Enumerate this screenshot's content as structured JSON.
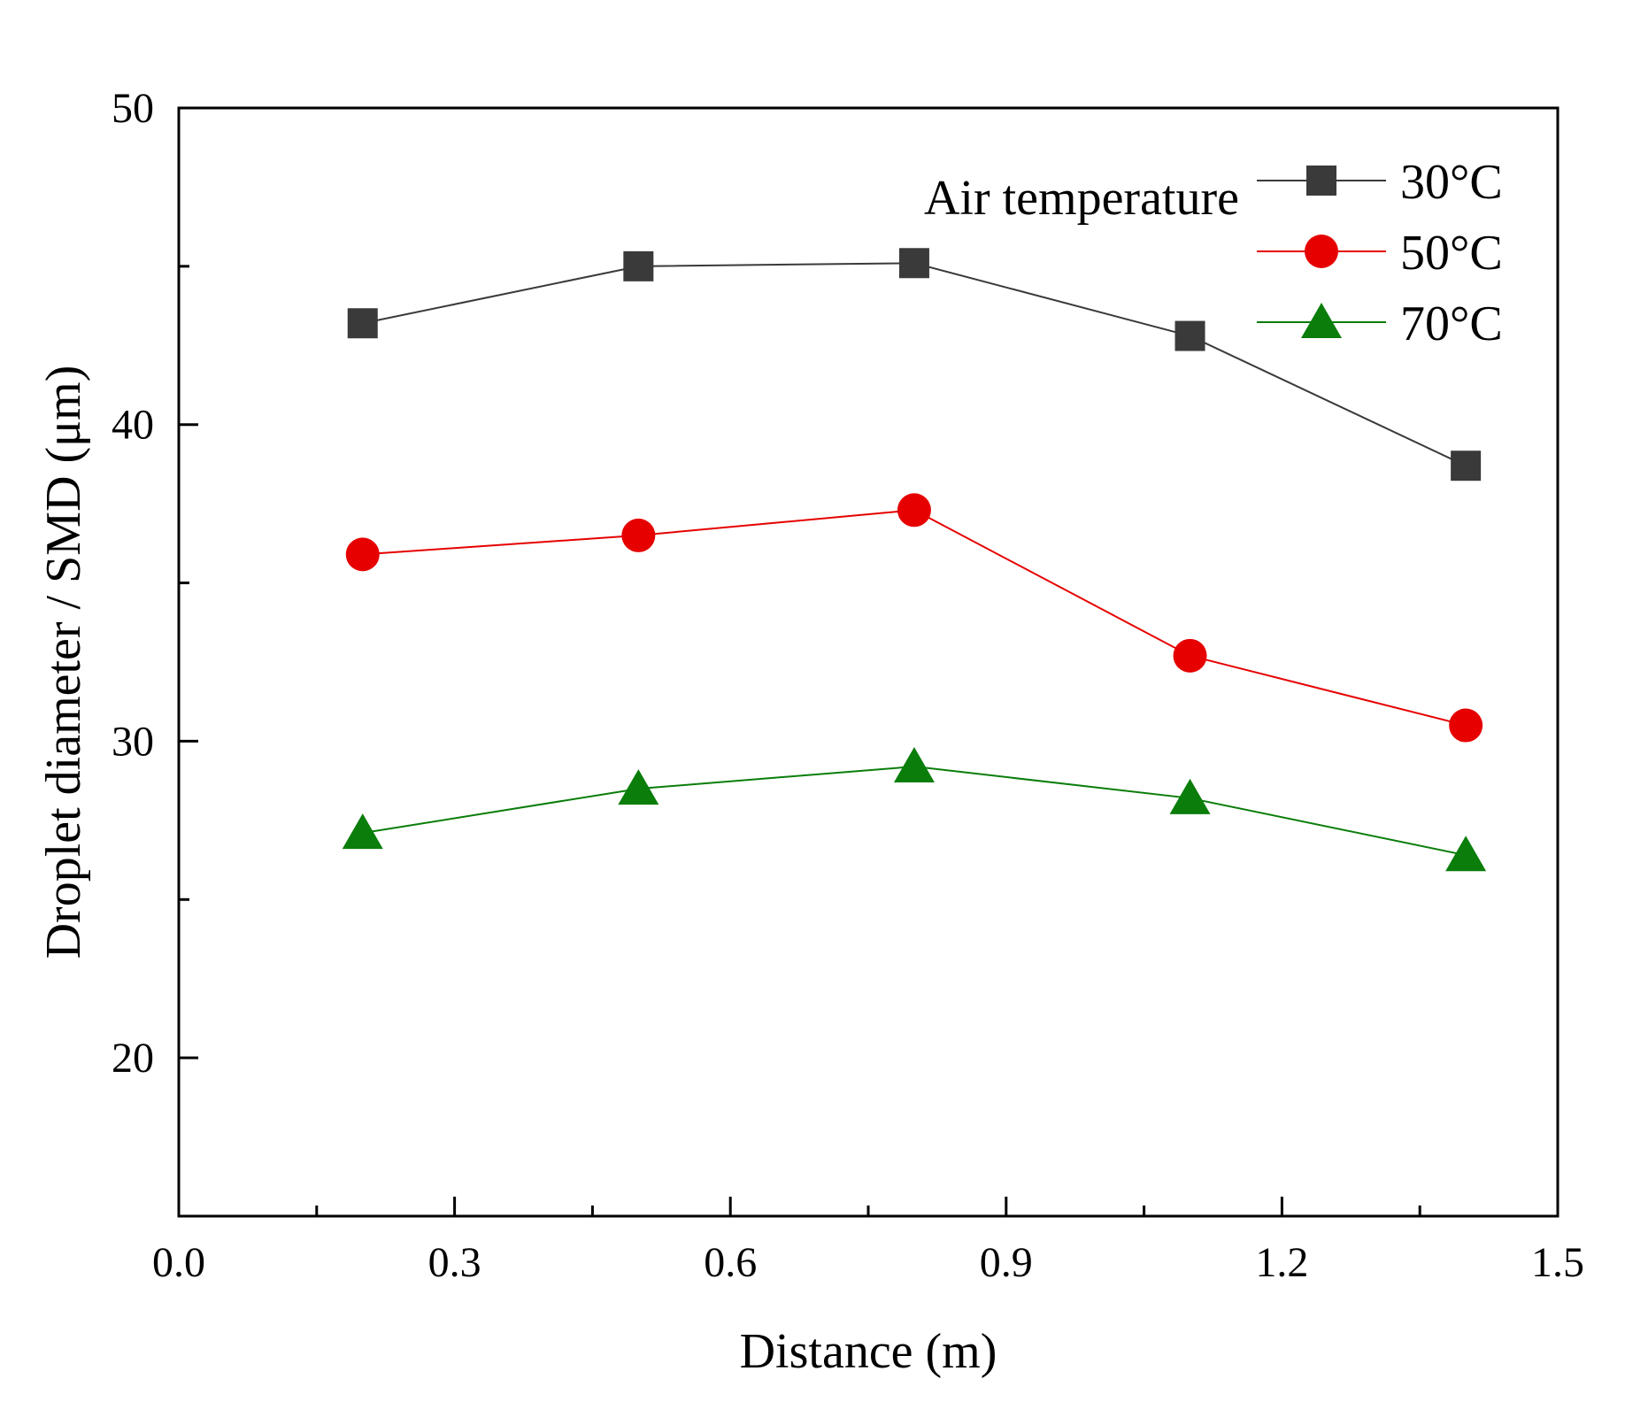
{
  "chart_data": {
    "type": "line",
    "title": "",
    "xlabel": "Distance (m)",
    "ylabel": "Droplet diameter / SMD (μm)",
    "xlim": [
      0.0,
      1.5
    ],
    "ylim": [
      15,
      50
    ],
    "x_major_ticks": [
      0.0,
      0.3,
      0.6,
      0.9,
      1.2,
      1.5
    ],
    "x_tick_labels": [
      "0.0",
      "0.3",
      "0.6",
      "0.9",
      "1.2",
      "1.5"
    ],
    "x_minor_ticks": [
      0.15,
      0.45,
      0.75,
      1.05,
      1.35
    ],
    "y_major_ticks": [
      20,
      30,
      40,
      50
    ],
    "y_tick_labels": [
      "20",
      "30",
      "40",
      "50"
    ],
    "y_minor_ticks": [
      25,
      35,
      45
    ],
    "grid": false,
    "legend": {
      "title": "Air temperature",
      "placement": "top-right"
    },
    "x": [
      0.2,
      0.5,
      0.8,
      1.1,
      1.4
    ],
    "series": [
      {
        "name": "30°C",
        "marker": "square",
        "color": "#3a3a3a",
        "values": [
          43.2,
          45.0,
          45.1,
          42.8,
          38.7
        ]
      },
      {
        "name": "50°C",
        "marker": "circle",
        "color": "#e60000",
        "values": [
          35.9,
          36.5,
          37.3,
          32.7,
          30.5
        ]
      },
      {
        "name": "70°C",
        "marker": "triangle",
        "color": "#0a7d0a",
        "values": [
          27.1,
          28.5,
          29.2,
          28.2,
          26.4
        ]
      }
    ]
  }
}
